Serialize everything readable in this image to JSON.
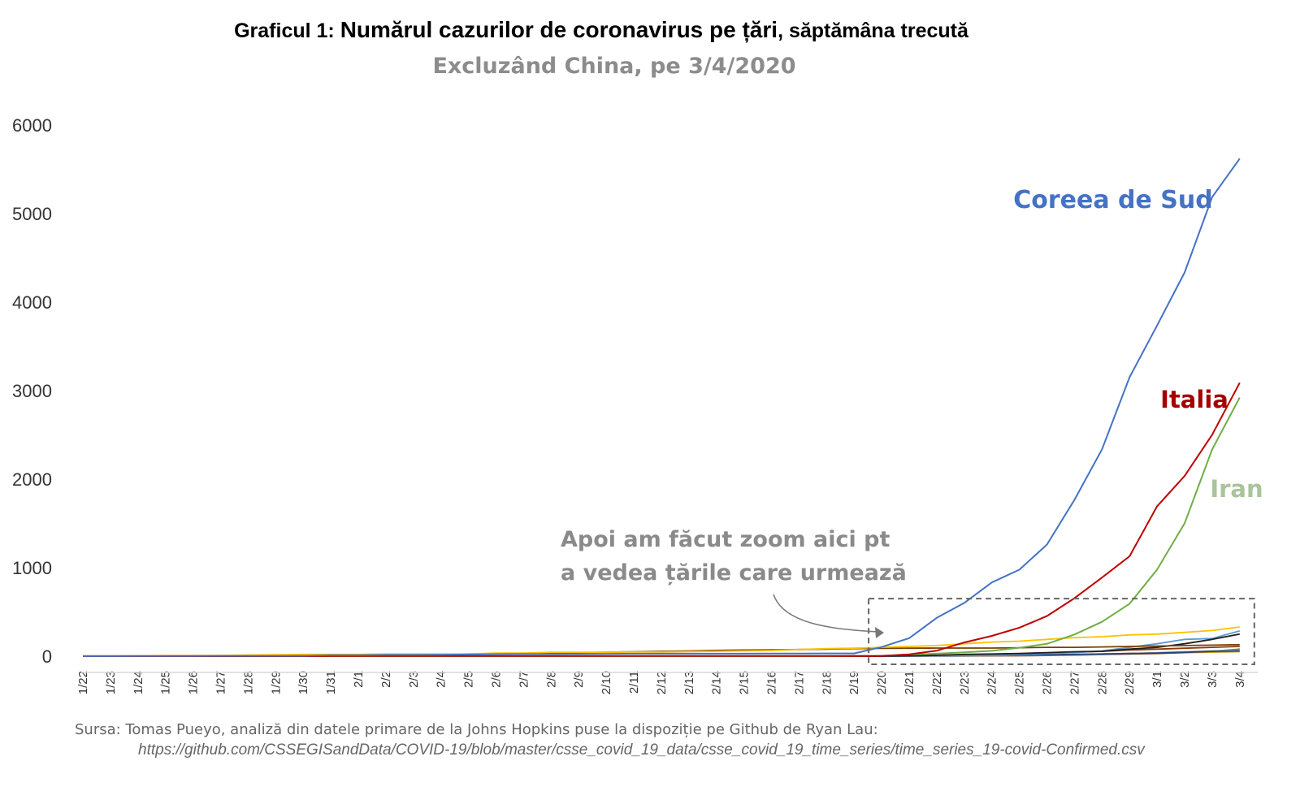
{
  "title": {
    "prefix": "Graficul 1: ",
    "main": "Numărul cazurilor de coronavirus pe țări",
    "suffix": ", săptămâna trecută"
  },
  "subtitle": "Excluzând China, pe 3/4/2020",
  "annotation": {
    "line1": "Apoi am făcut zoom aici pt",
    "line2": "a vedea țările care urmează"
  },
  "source": {
    "line1": "Sursa: Tomas Pueyo, analiză din datele primare de la Johns Hopkins puse la dispoziție pe Github de Ryan Lau:",
    "url": "https://github.com/CSSEGISandData/COVID-19/blob/master/csse_covid_19_data/csse_covid_19_time_series/time_series_19-covid-Confirmed.csv"
  },
  "chart_data": {
    "type": "line",
    "categories": [
      "1/22",
      "1/23",
      "1/24",
      "1/25",
      "1/26",
      "1/27",
      "1/28",
      "1/29",
      "1/30",
      "1/31",
      "2/1",
      "2/2",
      "2/3",
      "2/4",
      "2/5",
      "2/6",
      "2/7",
      "2/8",
      "2/9",
      "2/10",
      "2/11",
      "2/12",
      "2/13",
      "2/14",
      "2/15",
      "2/16",
      "2/17",
      "2/18",
      "2/19",
      "2/20",
      "2/21",
      "2/22",
      "2/23",
      "2/24",
      "2/25",
      "2/26",
      "2/27",
      "2/28",
      "2/29",
      "3/1",
      "3/2",
      "3/3",
      "3/4"
    ],
    "ylim": [
      0,
      6000
    ],
    "yticks": [
      0,
      1000,
      2000,
      3000,
      4000,
      5000,
      6000
    ],
    "grid": false,
    "series": [
      {
        "name": "Coreea de Sud",
        "color": "#4472c4",
        "label_color": "#4472c4",
        "values": [
          1,
          1,
          2,
          2,
          3,
          4,
          4,
          4,
          4,
          11,
          12,
          15,
          15,
          16,
          19,
          23,
          24,
          24,
          25,
          27,
          28,
          28,
          28,
          28,
          28,
          29,
          30,
          31,
          31,
          104,
          204,
          433,
          602,
          833,
          977,
          1261,
          1766,
          2337,
          3150,
          3736,
          4335,
          5186,
          5621
        ]
      },
      {
        "name": "Italia",
        "color": "#c00000",
        "label_color": "#a50000",
        "values": [
          0,
          0,
          0,
          0,
          0,
          0,
          0,
          0,
          0,
          2,
          2,
          2,
          2,
          2,
          2,
          2,
          3,
          3,
          3,
          3,
          3,
          3,
          3,
          3,
          3,
          3,
          3,
          3,
          3,
          3,
          20,
          62,
          155,
          229,
          322,
          453,
          655,
          888,
          1128,
          1694,
          2036,
          2502,
          3089
        ]
      },
      {
        "name": "Iran",
        "color": "#70ad47",
        "label_color": "#a9c49a",
        "values": [
          0,
          0,
          0,
          0,
          0,
          0,
          0,
          0,
          0,
          0,
          0,
          0,
          0,
          0,
          0,
          0,
          0,
          0,
          0,
          0,
          0,
          0,
          0,
          0,
          0,
          0,
          0,
          0,
          2,
          5,
          18,
          28,
          43,
          61,
          95,
          139,
          245,
          388,
          593,
          978,
          1501,
          2336,
          2922
        ]
      },
      {
        "name": "",
        "color": "#ffc000",
        "values": [
          2,
          2,
          5,
          7,
          8,
          8,
          14,
          17,
          20,
          20,
          20,
          25,
          25,
          25,
          25,
          35,
          35,
          45,
          45,
          45,
          48,
          48,
          52,
          55,
          60,
          64,
          75,
          85,
          90,
          100,
          110,
          120,
          140,
          160,
          170,
          190,
          210,
          220,
          240,
          250,
          270,
          290,
          330
        ]
      },
      {
        "name": "",
        "color": "#7b3f00",
        "values": [
          2,
          2,
          3,
          4,
          5,
          6,
          7,
          7,
          9,
          11,
          15,
          17,
          20,
          20,
          25,
          25,
          30,
          35,
          40,
          45,
          50,
          55,
          60,
          65,
          70,
          72,
          75,
          80,
          85,
          88,
          90,
          92,
          92,
          92,
          95,
          100,
          100,
          105,
          110,
          115,
          120,
          125,
          130
        ]
      },
      {
        "name": "",
        "color": "#1f1f1f",
        "values": [
          0,
          0,
          0,
          0,
          0,
          0,
          0,
          0,
          0,
          0,
          0,
          0,
          0,
          0,
          0,
          0,
          0,
          0,
          0,
          0,
          0,
          0,
          0,
          0,
          0,
          0,
          0,
          0,
          0,
          0,
          5,
          10,
          20,
          25,
          30,
          40,
          50,
          55,
          80,
          100,
          140,
          190,
          250
        ]
      },
      {
        "name": "",
        "color": "#5b9bd5",
        "values": [
          0,
          0,
          0,
          0,
          0,
          0,
          0,
          0,
          0,
          0,
          0,
          0,
          0,
          0,
          0,
          0,
          0,
          0,
          0,
          0,
          0,
          0,
          0,
          0,
          0,
          0,
          0,
          0,
          0,
          0,
          2,
          4,
          6,
          10,
          20,
          30,
          40,
          60,
          100,
          140,
          190,
          200,
          285
        ]
      },
      {
        "name": "",
        "color": "#264478",
        "values": [
          0,
          0,
          0,
          0,
          0,
          0,
          0,
          0,
          0,
          0,
          0,
          0,
          0,
          0,
          0,
          0,
          0,
          0,
          0,
          0,
          0,
          0,
          0,
          0,
          0,
          0,
          0,
          0,
          0,
          0,
          3,
          5,
          8,
          10,
          12,
          16,
          20,
          25,
          30,
          35,
          45,
          55,
          60
        ]
      },
      {
        "name": "",
        "color": "#843c0c",
        "values": [
          0,
          0,
          0,
          0,
          0,
          0,
          0,
          0,
          0,
          0,
          0,
          0,
          0,
          0,
          0,
          0,
          0,
          0,
          0,
          0,
          0,
          0,
          0,
          0,
          0,
          0,
          0,
          0,
          0,
          0,
          5,
          10,
          15,
          20,
          25,
          35,
          45,
          55,
          70,
          80,
          90,
          100,
          110
        ]
      },
      {
        "name": "",
        "color": "#a5a5a5",
        "values": [
          0,
          0,
          0,
          0,
          0,
          0,
          0,
          0,
          0,
          0,
          0,
          0,
          0,
          0,
          0,
          0,
          0,
          0,
          0,
          0,
          0,
          0,
          0,
          0,
          0,
          0,
          0,
          0,
          0,
          0,
          1,
          2,
          3,
          5,
          8,
          12,
          15,
          20,
          30,
          40,
          50,
          60,
          70
        ]
      },
      {
        "name": "",
        "color": "#9e480e",
        "values": [
          0,
          0,
          0,
          0,
          0,
          0,
          0,
          0,
          0,
          0,
          0,
          0,
          0,
          0,
          0,
          0,
          0,
          0,
          0,
          0,
          0,
          0,
          0,
          0,
          0,
          0,
          0,
          0,
          0,
          0,
          0,
          1,
          2,
          3,
          5,
          8,
          12,
          18,
          25,
          30,
          40,
          55,
          80
        ]
      },
      {
        "name": "",
        "color": "#c9a227",
        "values": [
          0,
          0,
          0,
          0,
          0,
          0,
          0,
          0,
          0,
          0,
          0,
          0,
          0,
          0,
          0,
          0,
          0,
          0,
          0,
          0,
          0,
          0,
          0,
          0,
          0,
          0,
          0,
          0,
          0,
          0,
          2,
          4,
          6,
          8,
          10,
          15,
          20,
          25,
          30,
          35,
          40,
          45,
          50
        ]
      }
    ],
    "zoom_box": {
      "from": "2/20",
      "to": "3/4",
      "ymax": 650
    }
  }
}
